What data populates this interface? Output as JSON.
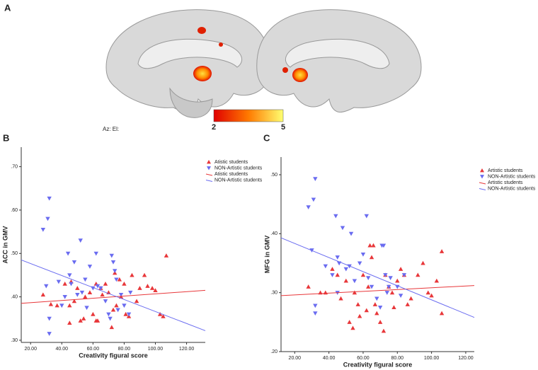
{
  "figure": {
    "panel_label": "A",
    "view_label": "Az: El:",
    "colorbar": {
      "min": 2,
      "max": 5,
      "colors": [
        "#e00000",
        "#ff7a00",
        "#ffff70"
      ]
    }
  },
  "chart_data": [
    {
      "type": "scatter",
      "panel": "B",
      "xlabel": "Creativity figural score",
      "ylabel": "ACC in GMV",
      "xlim": [
        14,
        132
      ],
      "ylim": [
        0.295,
        0.745
      ],
      "xticks": [
        {
          "value": 20,
          "label": "20.00"
        },
        {
          "value": 40,
          "label": "40.00"
        },
        {
          "value": 60,
          "label": "60.00"
        },
        {
          "value": 80,
          "label": "80.00"
        },
        {
          "value": 100,
          "label": "100.00"
        },
        {
          "value": 120,
          "label": "120.00"
        }
      ],
      "yticks": [
        {
          "value": 0.3,
          "label": ".30"
        },
        {
          "value": 0.4,
          "label": ".40"
        },
        {
          "value": 0.5,
          "label": ".50"
        },
        {
          "value": 0.6,
          "label": ".60"
        },
        {
          "value": 0.7,
          "label": ".70"
        }
      ],
      "legend": "right",
      "series": [
        {
          "name": "Atistic students",
          "color": "#e8373a",
          "marker": "triangle-up",
          "x": [
            28,
            33,
            37,
            42,
            45,
            46,
            48,
            50,
            52,
            54,
            55,
            58,
            60,
            62,
            63,
            65,
            66,
            68,
            70,
            72,
            73,
            74,
            75,
            77,
            78,
            80,
            81,
            83,
            85,
            88,
            90,
            93,
            95,
            98,
            100,
            103,
            105,
            107,
            62,
            45
          ],
          "values": [
            0.405,
            0.383,
            0.38,
            0.43,
            0.38,
            0.435,
            0.39,
            0.42,
            0.345,
            0.35,
            0.4,
            0.41,
            0.36,
            0.43,
            0.345,
            0.42,
            0.405,
            0.43,
            0.41,
            0.33,
            0.37,
            0.455,
            0.38,
            0.44,
            0.4,
            0.43,
            0.36,
            0.355,
            0.45,
            0.39,
            0.42,
            0.45,
            0.425,
            0.42,
            0.415,
            0.36,
            0.355,
            0.495,
            0.345,
            0.34
          ]
        },
        {
          "name": "NON-Artistic students",
          "color": "#6a6cf0",
          "marker": "triangle-down",
          "x": [
            28,
            31,
            32,
            30,
            32,
            32,
            38,
            40,
            44,
            45,
            46,
            48,
            50,
            52,
            53,
            55,
            58,
            60,
            62,
            63,
            65,
            68,
            70,
            71,
            72,
            73,
            74,
            75,
            76,
            78,
            80,
            83,
            84,
            42,
            56
          ],
          "values": [
            0.555,
            0.58,
            0.627,
            0.425,
            0.35,
            0.315,
            0.435,
            0.38,
            0.5,
            0.45,
            0.43,
            0.48,
            0.405,
            0.53,
            0.41,
            0.44,
            0.47,
            0.42,
            0.5,
            0.425,
            0.42,
            0.39,
            0.36,
            0.35,
            0.495,
            0.48,
            0.46,
            0.44,
            0.37,
            0.405,
            0.38,
            0.36,
            0.41,
            0.4,
            0.375
          ]
        },
        {
          "name": "Atistic students",
          "color": "#e8373a",
          "kind": "fit-line",
          "x": [
            14,
            132
          ],
          "values": [
            0.385,
            0.415
          ]
        },
        {
          "name": "NON-Artistic students",
          "color": "#6a6cf0",
          "kind": "fit-line",
          "x": [
            14,
            132
          ],
          "values": [
            0.485,
            0.322
          ]
        }
      ]
    },
    {
      "type": "scatter",
      "panel": "C",
      "xlabel": "Creativity figural score",
      "ylabel": "MFG in GMV",
      "xlim": [
        12,
        125
      ],
      "ylim": [
        0.2,
        0.53
      ],
      "xticks": [
        {
          "value": 20,
          "label": "20.00"
        },
        {
          "value": 40,
          "label": "40.00"
        },
        {
          "value": 60,
          "label": "60.00"
        },
        {
          "value": 80,
          "label": "80.00"
        },
        {
          "value": 100,
          "label": "100.00"
        },
        {
          "value": 120,
          "label": "120.00"
        }
      ],
      "yticks": [
        {
          "value": 0.2,
          "label": ".20"
        },
        {
          "value": 0.3,
          "label": ".30"
        },
        {
          "value": 0.4,
          "label": ".40"
        },
        {
          "value": 0.5,
          "label": ".50"
        }
      ],
      "legend": "right",
      "series": [
        {
          "name": "Artistic students",
          "color": "#e8373a",
          "marker": "triangle-up",
          "x": [
            28,
            35,
            38,
            42,
            45,
            47,
            50,
            52,
            54,
            55,
            57,
            58,
            60,
            62,
            63,
            65,
            66,
            67,
            68,
            70,
            72,
            73,
            75,
            77,
            78,
            80,
            82,
            84,
            86,
            88,
            92,
            95,
            98,
            100,
            103,
            106,
            106,
            64
          ],
          "values": [
            0.31,
            0.3,
            0.3,
            0.34,
            0.33,
            0.29,
            0.32,
            0.25,
            0.24,
            0.3,
            0.28,
            0.26,
            0.33,
            0.27,
            0.31,
            0.36,
            0.38,
            0.28,
            0.265,
            0.25,
            0.235,
            0.33,
            0.31,
            0.3,
            0.275,
            0.32,
            0.34,
            0.33,
            0.28,
            0.29,
            0.33,
            0.35,
            0.3,
            0.295,
            0.32,
            0.37,
            0.265,
            0.38
          ]
        },
        {
          "name": "NON-Artistic students",
          "color": "#6a6cf0",
          "marker": "triangle-down",
          "x": [
            28,
            31,
            32,
            30,
            32,
            32,
            38,
            42,
            44,
            45,
            46,
            48,
            50,
            52,
            53,
            55,
            58,
            60,
            62,
            63,
            65,
            68,
            70,
            71,
            72,
            73,
            74,
            75,
            76,
            80,
            82,
            84,
            45
          ],
          "values": [
            0.445,
            0.458,
            0.493,
            0.372,
            0.265,
            0.278,
            0.345,
            0.33,
            0.43,
            0.36,
            0.35,
            0.41,
            0.34,
            0.345,
            0.4,
            0.32,
            0.35,
            0.365,
            0.43,
            0.325,
            0.31,
            0.29,
            0.275,
            0.38,
            0.38,
            0.33,
            0.3,
            0.31,
            0.325,
            0.31,
            0.295,
            0.33,
            0.3
          ]
        },
        {
          "name": "Artistic students",
          "color": "#e8373a",
          "kind": "fit-line",
          "x": [
            12,
            125
          ],
          "values": [
            0.295,
            0.312
          ]
        },
        {
          "name": "NON-Artistic students",
          "color": "#6a6cf0",
          "kind": "fit-line",
          "x": [
            12,
            125
          ],
          "values": [
            0.393,
            0.258
          ]
        }
      ]
    }
  ]
}
